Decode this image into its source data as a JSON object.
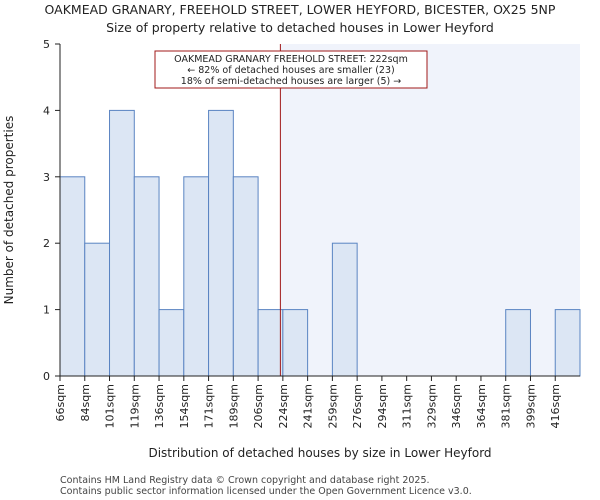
{
  "chart_data": {
    "type": "bar",
    "title_lines": [
      "OAKMEAD GRANARY, FREEHOLD STREET, LOWER HEYFORD, BICESTER, OX25 5NP",
      "Size of property relative to detached houses in Lower Heyford"
    ],
    "xlabel": "Distribution of detached houses by size in Lower Heyford",
    "ylabel": "Number of detached properties",
    "categories": [
      "66sqm",
      "84sqm",
      "101sqm",
      "119sqm",
      "136sqm",
      "154sqm",
      "171sqm",
      "189sqm",
      "206sqm",
      "224sqm",
      "241sqm",
      "259sqm",
      "276sqm",
      "294sqm",
      "311sqm",
      "329sqm",
      "346sqm",
      "364sqm",
      "381sqm",
      "399sqm",
      "416sqm"
    ],
    "values": [
      3,
      2,
      4,
      3,
      1,
      3,
      4,
      3,
      1,
      1,
      0,
      2,
      0,
      0,
      0,
      0,
      0,
      0,
      1,
      0,
      1
    ],
    "yticks": [
      0,
      1,
      2,
      3,
      4,
      5
    ],
    "ylim": [
      0,
      5
    ],
    "grid": false,
    "marker": {
      "value_sqm": 222,
      "bar_position": 8.9
    },
    "annotation_lines": [
      "OAKMEAD GRANARY FREEHOLD STREET: 222sqm",
      "← 82% of detached houses are smaller (23)",
      "18% of semi-detached houses are larger (5) →"
    ],
    "colors": {
      "bar_fill": "#dce6f4",
      "bar_stroke": "#5a84c2",
      "highlight_bg": "#f0f3fb",
      "marker_line": "#a01818",
      "annotation_border": "#a01818",
      "axis": "#222222"
    }
  },
  "footer": [
    "Contains HM Land Registry data © Crown copyright and database right 2025.",
    "Contains public sector information licensed under the Open Government Licence v3.0."
  ]
}
